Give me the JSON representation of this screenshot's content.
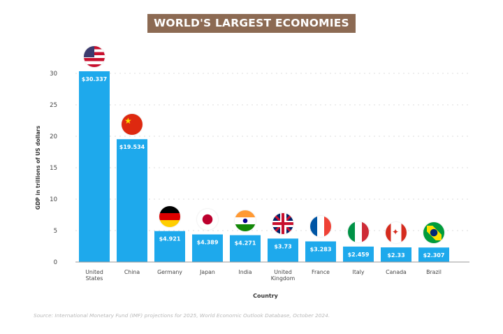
{
  "chart_data": {
    "type": "bar",
    "title": "WORLD'S LARGEST ECONOMIES",
    "xlabel": "Country",
    "ylabel": "GDP in trillions of US dollars",
    "ylim": [
      0,
      30
    ],
    "yticks": [
      0,
      5,
      10,
      15,
      20,
      25,
      30
    ],
    "grid": true,
    "categories": [
      [
        "United",
        "States"
      ],
      [
        "China"
      ],
      [
        "Germany"
      ],
      [
        "Japan"
      ],
      [
        "India"
      ],
      [
        "United",
        "Kingdom"
      ],
      [
        "France"
      ],
      [
        "Italy"
      ],
      [
        "Canada"
      ],
      [
        "Brazil"
      ]
    ],
    "values": [
      30.337,
      19.534,
      4.921,
      4.389,
      4.271,
      3.73,
      3.283,
      2.459,
      2.33,
      2.307
    ],
    "data_labels": [
      "$30.337",
      "$19.534",
      "$4.921",
      "$4.389",
      "$4.271",
      "$3.73",
      "$3.283",
      "$2.459",
      "$2.33",
      "$2.307"
    ],
    "flags": [
      "us-flag-icon",
      "china-flag-icon",
      "germany-flag-icon",
      "japan-flag-icon",
      "india-flag-icon",
      "uk-flag-icon",
      "france-flag-icon",
      "italy-flag-icon",
      "canada-flag-icon",
      "brazil-flag-icon"
    ],
    "bar_color": "#1ea9ec",
    "source": "Source: International Monetary Fund (IMF) projections for 2025, World Economic Outlook Database, October 2024."
  }
}
